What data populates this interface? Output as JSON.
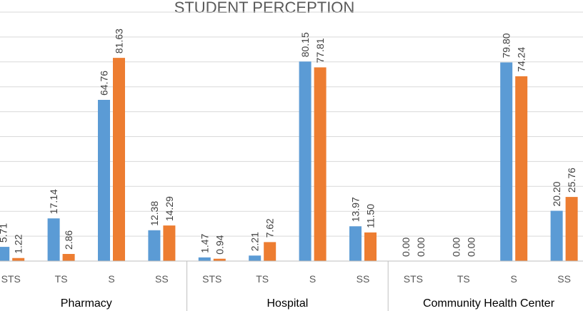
{
  "chart_data": {
    "type": "bar",
    "title": "STUDENT PERCEPTION",
    "groups": [
      {
        "name": "Pharmacy",
        "categories": [
          "STS",
          "TS",
          "S",
          "SS"
        ]
      },
      {
        "name": "Hospital",
        "categories": [
          "STS",
          "TS",
          "S",
          "SS"
        ]
      },
      {
        "name": "Community Health Center",
        "categories": [
          "STS",
          "TS",
          "S",
          "SS"
        ]
      }
    ],
    "series": [
      {
        "color": "#5b9bd5",
        "values": [
          5.71,
          17.14,
          64.76,
          12.38,
          1.47,
          2.21,
          80.15,
          13.97,
          0.0,
          0.0,
          79.8,
          20.2
        ],
        "labels": [
          "5.71",
          "17.14",
          "64.76",
          "12.38",
          "1.47",
          "2.21",
          "80.15",
          "13.97",
          "0.00",
          "0.00",
          "79.80",
          "20.20"
        ]
      },
      {
        "color": "#ed7d31",
        "values": [
          1.22,
          2.86,
          81.63,
          14.29,
          0.94,
          7.62,
          77.81,
          11.5,
          0.0,
          0.0,
          74.24,
          25.76
        ],
        "labels": [
          "1.22",
          "2.86",
          "81.63",
          "14.29",
          "0.94",
          "7.62",
          "77.81",
          "11.50",
          "0.00",
          "0.00",
          "74.24",
          "25.76"
        ]
      }
    ],
    "ylim": [
      0,
      100
    ],
    "grid": true,
    "legend": "none"
  }
}
